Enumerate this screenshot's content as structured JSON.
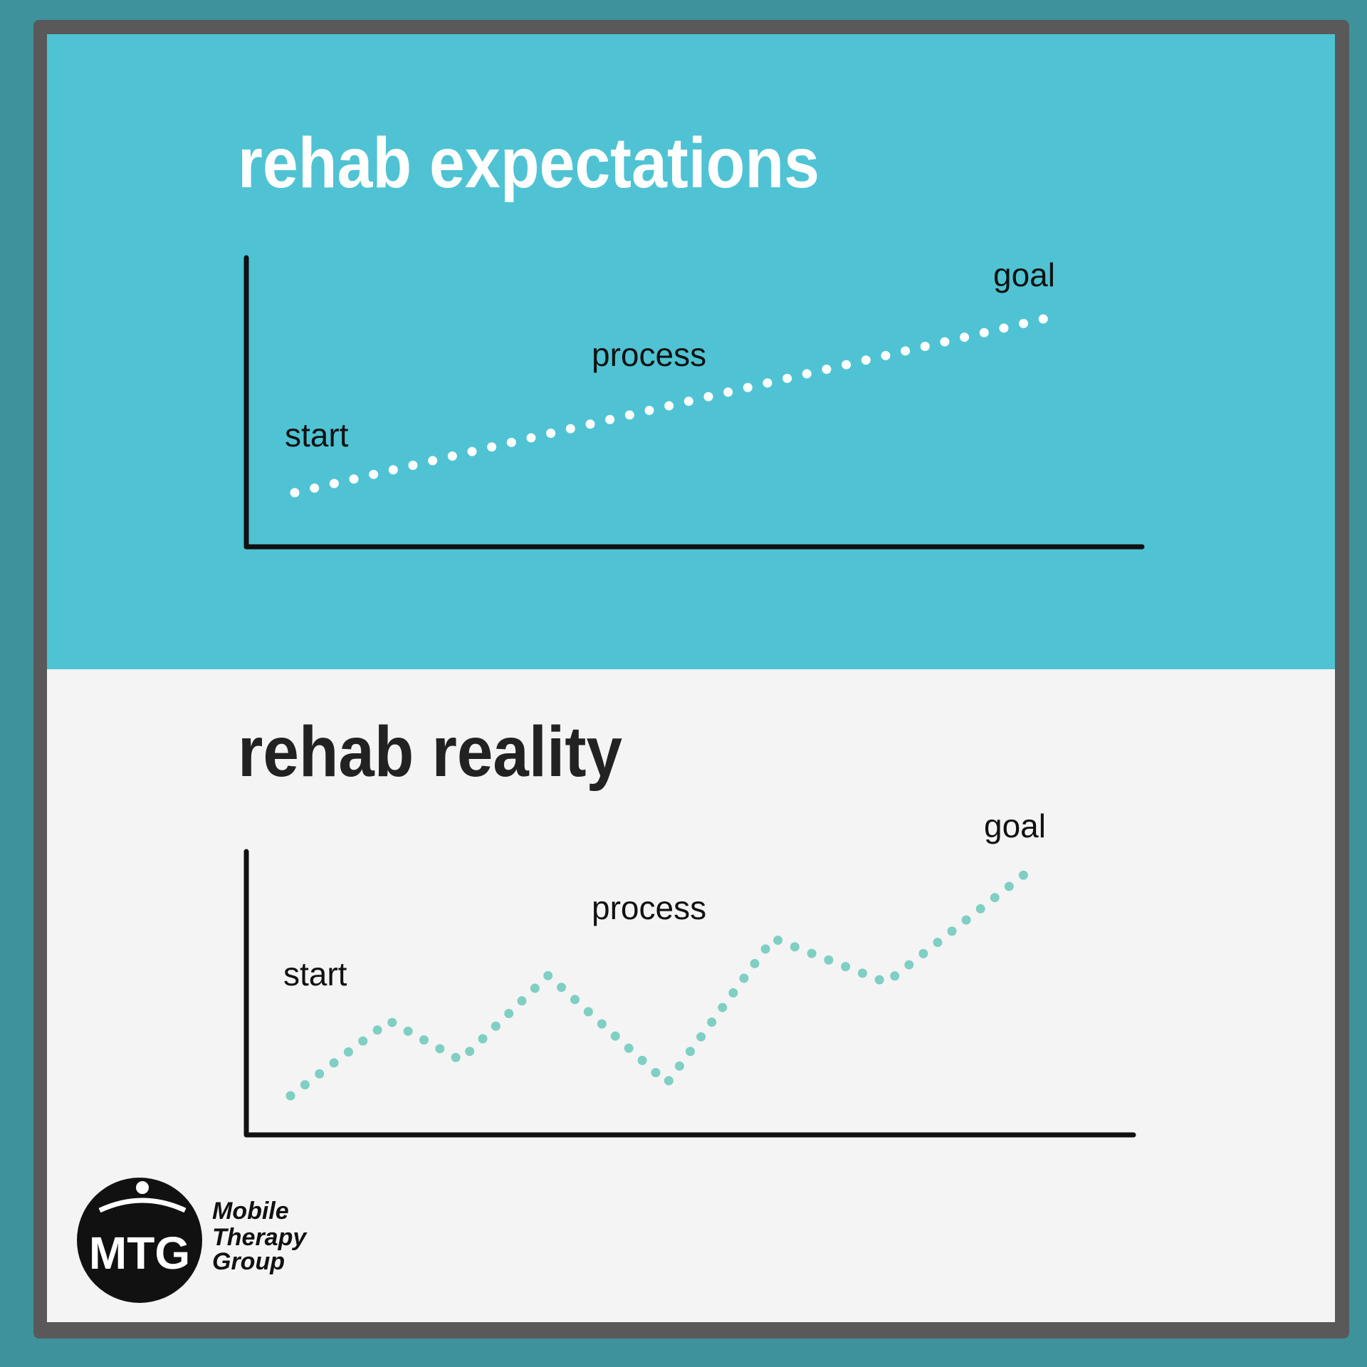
{
  "expectations": {
    "title": "rehab expectations",
    "labels": {
      "start": "start",
      "process": "process",
      "goal": "goal"
    }
  },
  "reality": {
    "title": "rehab reality",
    "labels": {
      "start": "start",
      "process": "process",
      "goal": "goal"
    }
  },
  "logo": {
    "mark": "MTG",
    "name": [
      "Mobile",
      "Therapy",
      "Group"
    ]
  }
}
